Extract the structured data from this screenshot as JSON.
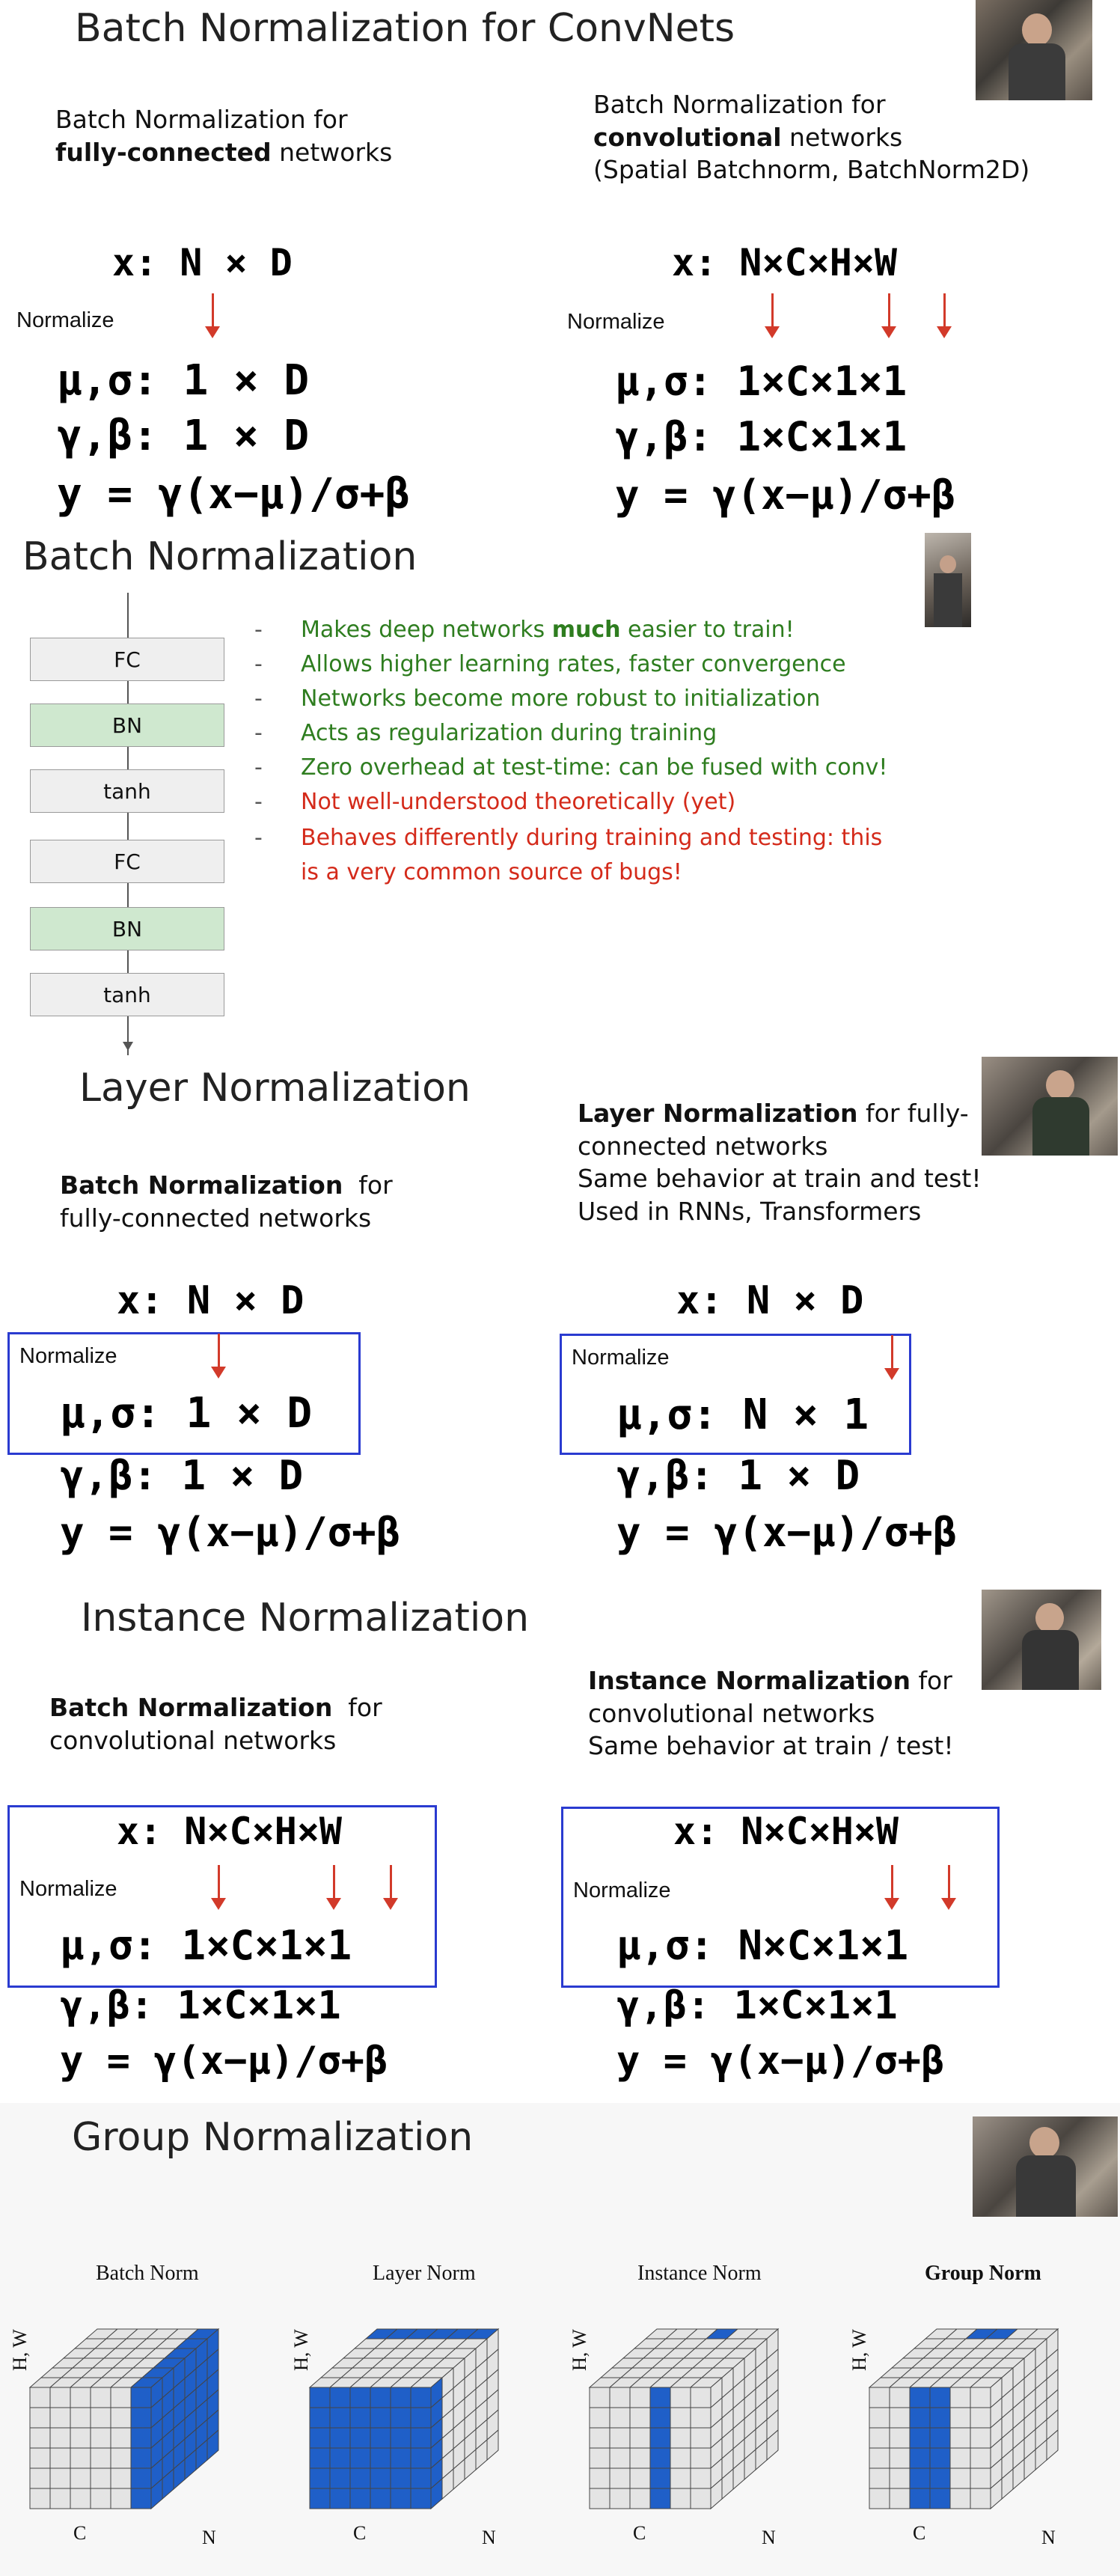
{
  "bn_convnets": {
    "title": "Batch Normalization for ConvNets",
    "left_heading_line1": "Batch Normalization for",
    "left_heading_bold": "fully-connected",
    "left_heading_rest": " networks",
    "right_heading_line1": "Batch Normalization for",
    "right_heading_bold": "convolutional",
    "right_heading_rest": " networks",
    "right_heading_line3": "(Spatial Batchnorm, BatchNorm2D)",
    "left_x": "x: N × D",
    "left_normalize": "Normalize",
    "left_mu": "μ,σ: 1 × D",
    "left_gamma": "γ,β: 1 × D",
    "left_y": "y = γ(x−μ)/σ+β",
    "right_x": "x: N×C×H×W",
    "right_normalize": "Normalize",
    "right_mu": "μ,σ: 1×C×1×1",
    "right_gamma": "γ,β: 1×C×1×1",
    "right_y": "y = γ(x−μ)/σ+β"
  },
  "bn_summary": {
    "title": "Batch Normalization",
    "layers": [
      "FC",
      "BN",
      "tanh",
      "FC",
      "BN",
      "tanh"
    ],
    "bullets": [
      {
        "pre": "Makes deep networks ",
        "bold": "much",
        "post": " easier to train!",
        "color": "#2e7d1f"
      },
      {
        "pre": "Allows higher learning rates, faster convergence",
        "bold": "",
        "post": "",
        "color": "#2e7d1f"
      },
      {
        "pre": "Networks become more robust to initialization",
        "bold": "",
        "post": "",
        "color": "#2e7d1f"
      },
      {
        "pre": "Acts as regularization during training",
        "bold": "",
        "post": "",
        "color": "#2e7d1f"
      },
      {
        "pre": "Zero overhead at test-time: can be fused with conv!",
        "bold": "",
        "post": "",
        "color": "#2e7d1f"
      },
      {
        "pre": "Not well-understood theoretically (yet)",
        "bold": "",
        "post": "",
        "color": "#d42a1a"
      },
      {
        "pre": "Behaves differently during training and testing: this",
        "bold": "",
        "post": "",
        "color": "#d42a1a"
      },
      {
        "pre": "is a very common source of bugs!",
        "bold": "",
        "post": "",
        "color": "#d42a1a"
      }
    ],
    "dash": "-"
  },
  "layer_norm": {
    "title": "Layer Normalization",
    "left_bold": "Batch Normalization",
    "left_rest": "  for",
    "left_line2": "fully-connected networks",
    "right_bold": "Layer Normalization",
    "right_rest": " for fully-",
    "right_line2": "connected networks",
    "right_line3": "Same behavior at train and test!",
    "right_line4": "Used in RNNs, Transformers",
    "left_x": "x: N × D",
    "left_normalize": "Normalize",
    "left_mu": "μ,σ: 1 × D",
    "left_gamma": "γ,β: 1 × D",
    "left_y": "y = γ(x−μ)/σ+β",
    "right_x": "x: N × D",
    "right_normalize": "Normalize",
    "right_mu": "μ,σ: N × 1",
    "right_gamma": "γ,β: 1 × D",
    "right_y": "y = γ(x−μ)/σ+β"
  },
  "instance_norm": {
    "title": "Instance Normalization",
    "left_bold": "Batch Normalization",
    "left_rest": "  for",
    "left_line2": "convolutional networks",
    "right_bold": "Instance Normalization",
    "right_rest": " for",
    "right_line2": "convolutional networks",
    "right_line3": "Same behavior at train / test!",
    "left_x": "x: N×C×H×W",
    "left_normalize": "Normalize",
    "left_mu": "μ,σ: 1×C×1×1",
    "left_gamma": "γ,β: 1×C×1×1",
    "left_y": "y = γ(x−μ)/σ+β",
    "right_x": "x: N×C×H×W",
    "right_normalize": "Normalize",
    "right_mu": "μ,σ: N×C×1×1",
    "right_gamma": "γ,β: 1×C×1×1",
    "right_y": "y = γ(x−μ)/σ+β"
  },
  "group_norm": {
    "title": "Group Normalization",
    "cubes": [
      {
        "label": "Batch Norm",
        "bold": false
      },
      {
        "label": "Layer Norm",
        "bold": false
      },
      {
        "label": "Instance Norm",
        "bold": false
      },
      {
        "label": "Group Norm",
        "bold": true
      }
    ],
    "axis_hw": "H, W",
    "axis_c": "C",
    "axis_n": "N"
  },
  "colors": {
    "normalize_box": "#2a3bd0",
    "arrow": "#d23a2a",
    "bn_layer_fill": "#cfe8cf",
    "fc_layer_fill": "#efefef",
    "cube_highlight": "#1f5fc8",
    "cube_gray": "#e4e4e4"
  }
}
